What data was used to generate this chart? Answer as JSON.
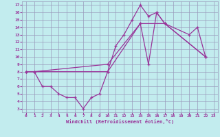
{
  "xlabel": "Windchill (Refroidissement éolien,°C)",
  "bg_color": "#c2ecee",
  "grid_color": "#9999bb",
  "line_color": "#993399",
  "xlim": [
    -0.5,
    23.5
  ],
  "ylim": [
    2.5,
    17.5
  ],
  "xticks": [
    0,
    1,
    2,
    3,
    4,
    5,
    6,
    7,
    8,
    9,
    10,
    11,
    12,
    13,
    14,
    15,
    16,
    17,
    18,
    19,
    20,
    21,
    22,
    23
  ],
  "yticks": [
    3,
    4,
    5,
    6,
    7,
    8,
    9,
    10,
    11,
    12,
    13,
    14,
    15,
    16,
    17
  ],
  "line1_x": [
    0,
    1,
    2,
    3,
    4,
    5,
    6,
    7,
    8,
    9,
    10,
    11,
    12,
    13,
    14,
    15,
    16,
    17,
    22
  ],
  "line1_y": [
    8,
    8,
    6,
    6,
    5,
    4.5,
    4.5,
    3,
    4.5,
    5,
    8,
    11.5,
    13,
    15,
    17,
    15.5,
    16,
    14.5,
    10
  ],
  "line2_x": [
    0,
    1,
    10,
    14,
    15,
    16,
    17,
    22
  ],
  "line2_y": [
    8,
    8,
    8,
    14.5,
    9,
    16,
    14.5,
    10
  ],
  "line3_x": [
    0,
    1,
    10,
    14,
    17,
    20,
    21,
    22
  ],
  "line3_y": [
    8,
    8,
    9,
    14.5,
    14.5,
    13,
    14,
    10
  ]
}
